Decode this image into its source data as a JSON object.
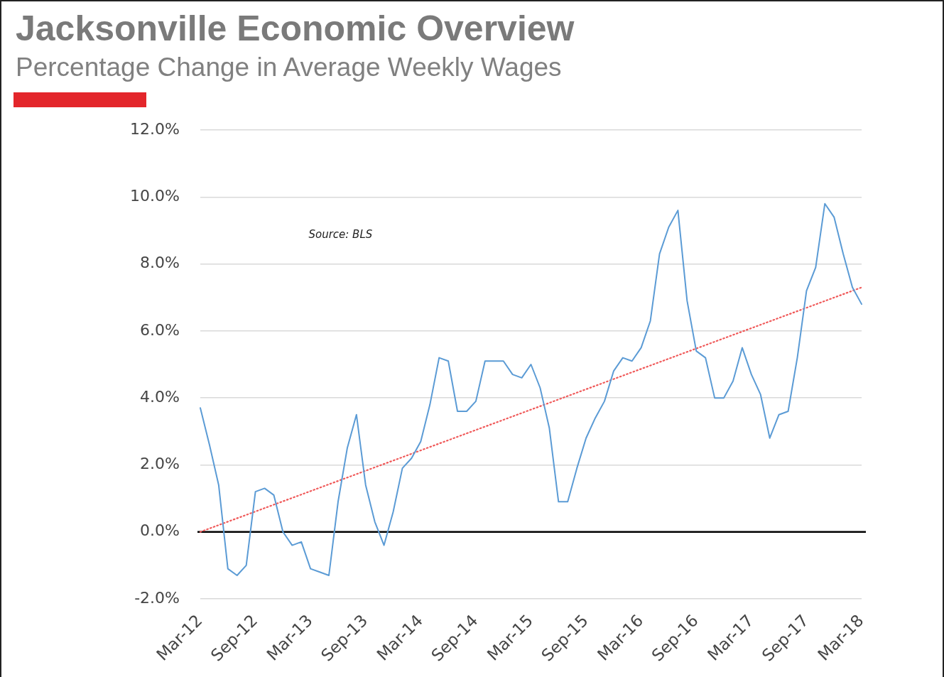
{
  "chart_data": {
    "type": "line",
    "title": "Jacksonville Economic Overview",
    "subtitle": "Percentage Change in Average Weekly Wages",
    "annotations": [
      "Source: BLS"
    ],
    "categories": [
      "Mar-12",
      null,
      null,
      null,
      null,
      null,
      "Sep-12",
      null,
      null,
      null,
      null,
      null,
      "Mar-13",
      null,
      null,
      null,
      null,
      null,
      "Sep-13",
      null,
      null,
      null,
      null,
      null,
      "Mar-14",
      null,
      null,
      null,
      null,
      null,
      "Sep-14",
      null,
      null,
      null,
      null,
      null,
      "Mar-15",
      null,
      null,
      null,
      null,
      null,
      "Sep-15",
      null,
      null,
      null,
      null,
      null,
      "Mar-16",
      null,
      null,
      null,
      null,
      null,
      "Sep-16",
      null,
      null,
      null,
      null,
      null,
      "Mar-17",
      null,
      null,
      null,
      null,
      null,
      "Sep-17",
      null,
      null,
      null,
      null,
      null,
      "Mar-18"
    ],
    "series": [
      {
        "color": "#5b9bd5",
        "values": [
          3.7,
          2.6,
          1.4,
          -1.1,
          -1.3,
          -1.0,
          1.2,
          1.3,
          1.1,
          0.0,
          -0.4,
          -0.3,
          -1.1,
          -1.2,
          -1.3,
          0.9,
          2.5,
          3.5,
          1.4,
          0.3,
          -0.4,
          0.6,
          1.9,
          2.2,
          2.7,
          3.8,
          5.2,
          5.1,
          3.6,
          3.6,
          3.9,
          5.1,
          5.1,
          5.1,
          4.7,
          4.6,
          5.0,
          4.3,
          3.1,
          0.9,
          0.9,
          1.9,
          2.8,
          3.4,
          3.9,
          4.8,
          5.2,
          5.1,
          5.5,
          6.3,
          8.3,
          9.1,
          9.6,
          6.9,
          5.4,
          5.2,
          4.0,
          4.0,
          4.5,
          5.5,
          4.7,
          4.1,
          2.8,
          3.5,
          3.6,
          5.2,
          7.2,
          7.9,
          9.8,
          9.4,
          8.3,
          7.3,
          6.8
        ]
      },
      {
        "type": "line",
        "color": "#f05a5a",
        "line_style": "dotted",
        "x": [
          "Mar-12",
          "Mar-18"
        ],
        "values": [
          0.0,
          7.3
        ]
      }
    ],
    "ylim": [
      -2,
      12
    ],
    "yticks": [
      {
        "value": -2,
        "label": "-2.0%"
      },
      {
        "value": 0,
        "label": "0.0%"
      },
      {
        "value": 2,
        "label": "2.0%"
      },
      {
        "value": 4,
        "label": "4.0%"
      },
      {
        "value": 6,
        "label": "6.0%"
      },
      {
        "value": 8,
        "label": "8.0%"
      },
      {
        "value": 10,
        "label": "10.0%"
      },
      {
        "value": 12,
        "label": "12.0%"
      }
    ],
    "grid": "y",
    "ref_lines": [
      {
        "axis": "y",
        "value": 0,
        "color": "#000000"
      }
    ]
  }
}
